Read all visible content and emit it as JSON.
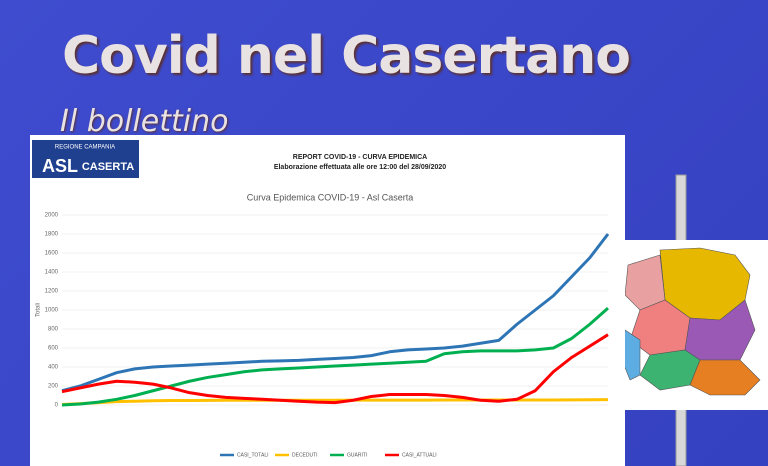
{
  "header": {
    "title": "Covid nel Casertano",
    "subtitle": "Il bollettino"
  },
  "report": {
    "logo": {
      "region": "REGIONE CAMPANIA",
      "org": "ASL",
      "city": "CASERTA"
    },
    "title": "REPORT COVID-19 - CURVA EPIDEMICA",
    "subtitle": "Elaborazione effettuata alle ore 12:00 del 28/09/2020"
  },
  "chart_data": {
    "type": "line",
    "title": "Curva Epidemica COVID-19 - Asl Caserta",
    "y_label": "Totali",
    "categories": [
      null,
      null,
      null,
      null,
      null,
      null,
      null,
      null,
      null,
      null,
      null,
      null,
      null,
      null,
      null,
      null,
      null,
      null,
      null,
      null,
      null,
      null,
      null,
      null,
      null,
      null,
      null,
      null,
      null,
      null,
      null
    ],
    "series": [
      {
        "name": "CASI_TOTALI",
        "color": "#2e75b6",
        "values": [
          150,
          200,
          270,
          340,
          380,
          400,
          410,
          420,
          430,
          440,
          450,
          460,
          465,
          470,
          480,
          490,
          500,
          520,
          560,
          580,
          590,
          600,
          620,
          650,
          680,
          850,
          1000,
          1150,
          1350,
          1550,
          1800
        ]
      },
      {
        "name": "DECEDUTI",
        "color": "#ffc000",
        "values": [
          5,
          15,
          25,
          35,
          40,
          45,
          47,
          48,
          49,
          50,
          50,
          50,
          50,
          50,
          50,
          50,
          51,
          51,
          51,
          51,
          51,
          52,
          52,
          52,
          52,
          52,
          53,
          53,
          54,
          55,
          56
        ]
      },
      {
        "name": "GUARITI",
        "color": "#00b050",
        "values": [
          0,
          10,
          30,
          60,
          100,
          150,
          200,
          250,
          290,
          320,
          350,
          370,
          380,
          390,
          400,
          410,
          420,
          430,
          440,
          450,
          460,
          540,
          560,
          570,
          570,
          570,
          580,
          600,
          700,
          850,
          1020
        ]
      },
      {
        "name": "CASI_ATTUALI",
        "color": "#ff0000",
        "values": [
          140,
          180,
          220,
          250,
          240,
          220,
          180,
          130,
          100,
          80,
          70,
          60,
          50,
          40,
          30,
          25,
          50,
          90,
          110,
          110,
          110,
          100,
          80,
          50,
          40,
          60,
          150,
          350,
          500,
          620,
          740
        ]
      }
    ],
    "ylim": [
      0,
      2000
    ],
    "yticks": [
      0,
      200,
      400,
      600,
      800,
      1000,
      1200,
      1400,
      1600,
      1800,
      2000
    ],
    "grid": true
  }
}
